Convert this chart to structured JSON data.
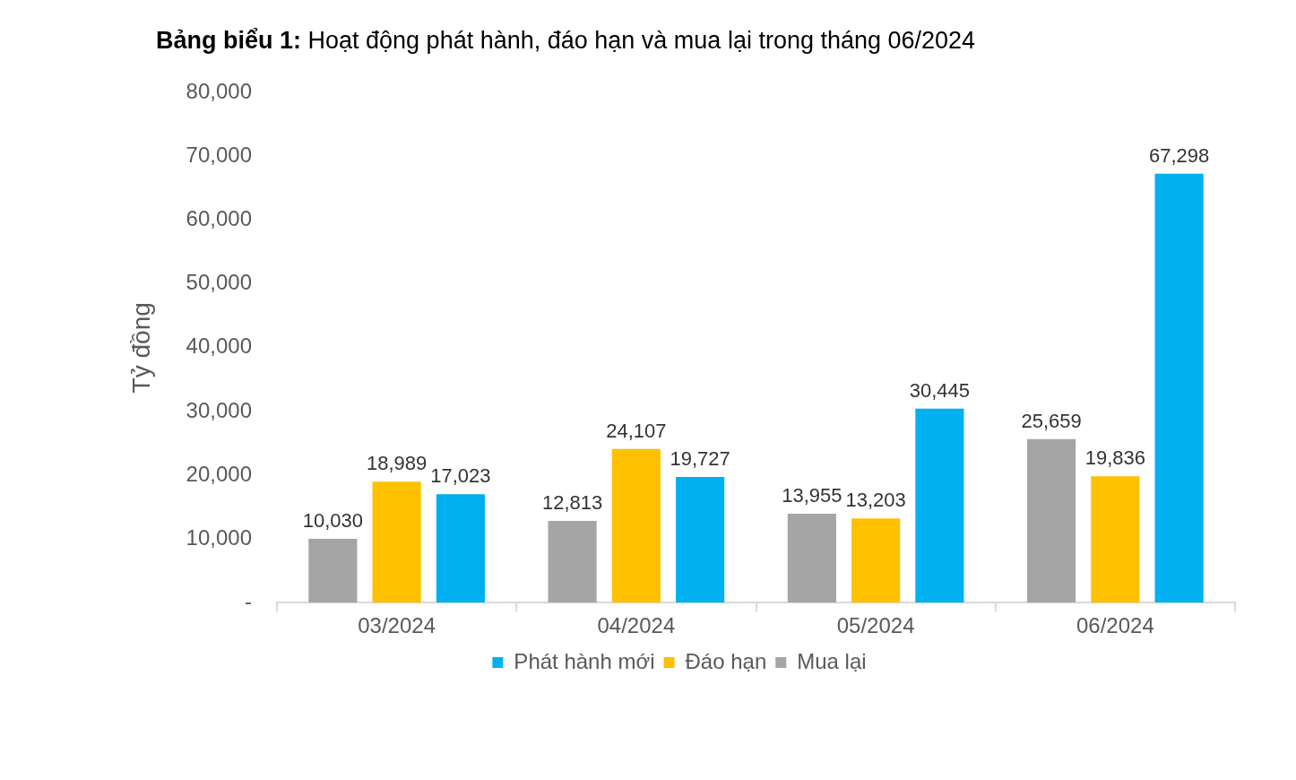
{
  "chart_data": {
    "type": "bar",
    "title": "Bảng biểu 1: Hoạt động phát hành, đáo hạn và mua lại trong tháng 06/2024",
    "ylabel": "Tỷ đồng",
    "categories": [
      "03/2024",
      "04/2024",
      "05/2024",
      "06/2024"
    ],
    "series": [
      {
        "name": "Mua lại",
        "color": "#a5a5a5",
        "values": [
          10030,
          12813,
          13955,
          25659
        ],
        "value_labels": [
          "10,030",
          "12,813",
          "13,955",
          "25,659"
        ]
      },
      {
        "name": "Đáo hạn",
        "color": "#ffc000",
        "values": [
          18989,
          24107,
          13203,
          19836
        ],
        "value_labels": [
          "18,989",
          "24,107",
          "13,203",
          "19,836"
        ]
      },
      {
        "name": "Phát hành mới",
        "color": "#00b0f0",
        "values": [
          17023,
          19727,
          30445,
          67298
        ],
        "value_labels": [
          "17,023",
          "19,727",
          "30,445",
          "67,298"
        ]
      }
    ],
    "ylim": [
      0,
      80000
    ],
    "yticks": [
      {
        "value": 0,
        "label": "-"
      },
      {
        "value": 10000,
        "label": "10,000"
      },
      {
        "value": 20000,
        "label": "20,000"
      },
      {
        "value": 30000,
        "label": "30,000"
      },
      {
        "value": 40000,
        "label": "40,000"
      },
      {
        "value": 50000,
        "label": "50,000"
      },
      {
        "value": 60000,
        "label": "60,000"
      },
      {
        "value": 70000,
        "label": "70,000"
      },
      {
        "value": 80000,
        "label": "80,000"
      }
    ],
    "grid": false,
    "legend": "bottom"
  }
}
